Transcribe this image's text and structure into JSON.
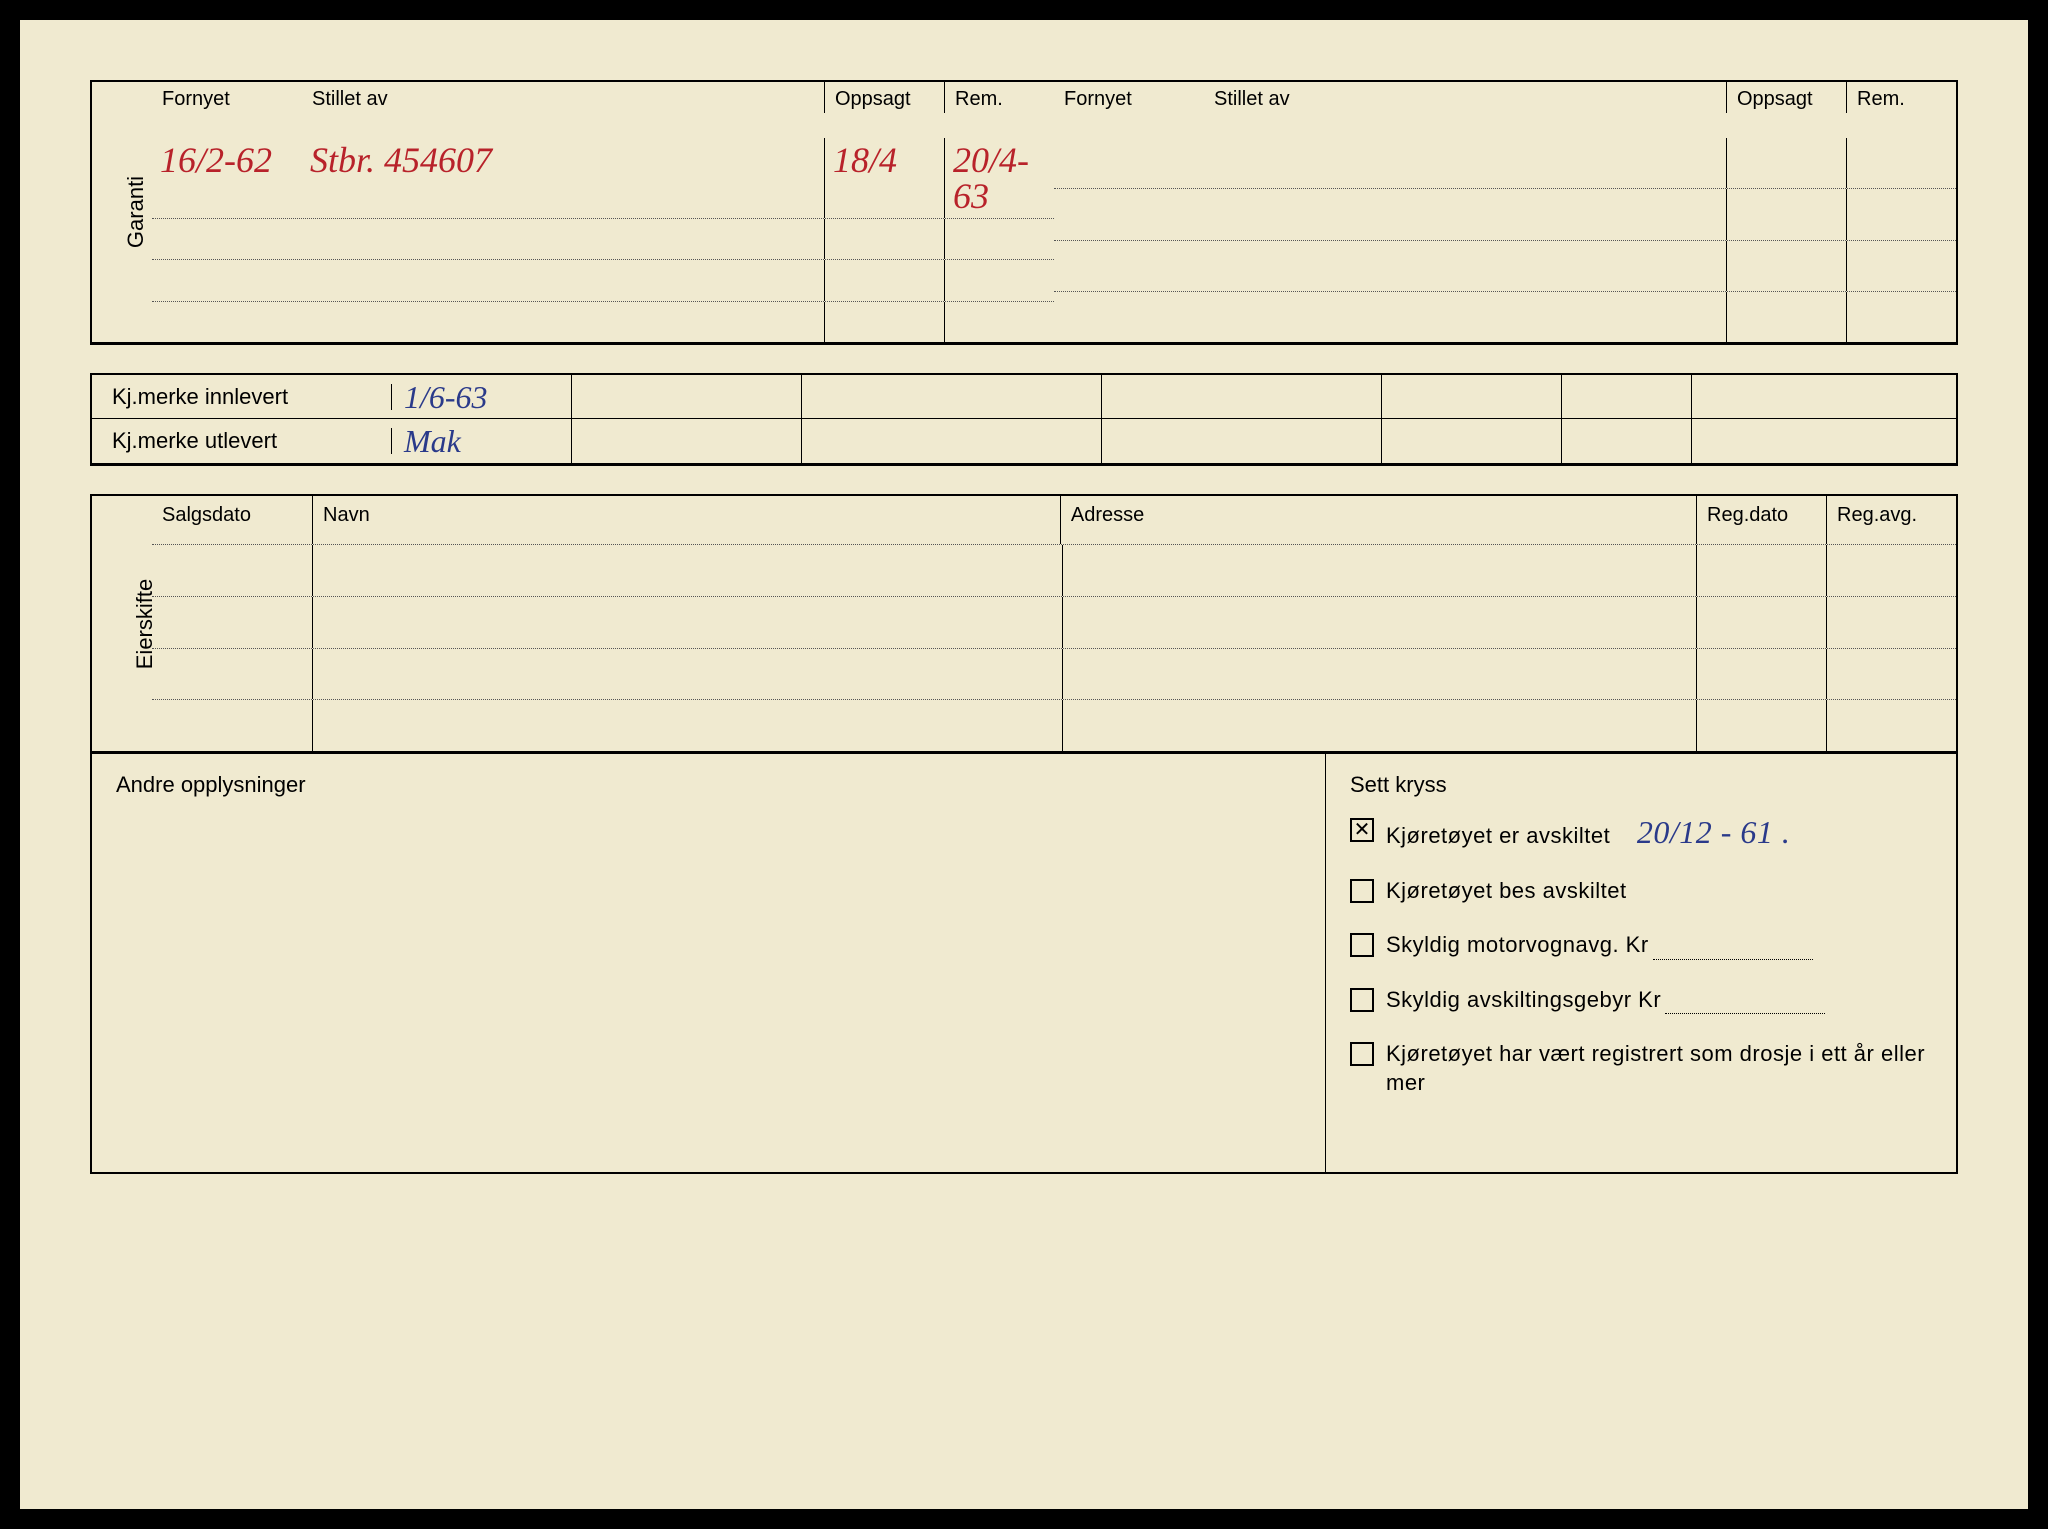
{
  "garanti": {
    "label": "Garanti",
    "headers": {
      "fornyet": "Fornyet",
      "stillet": "Stillet av",
      "oppsagt": "Oppsagt",
      "rem": "Rem."
    },
    "row1": {
      "fornyet": "16/2-62",
      "stillet": "Stbr. 454607",
      "oppsagt": "18/4",
      "rem": "20/4-63"
    }
  },
  "kjmerke": {
    "innlevert_label": "Kj.merke innlevert",
    "utlevert_label": "Kj.merke utlevert",
    "innlevert_val": "1/6-63",
    "utlevert_val": "Mak"
  },
  "eierskifte": {
    "label": "Eierskifte",
    "headers": {
      "salgsdato": "Salgsdato",
      "navn": "Navn",
      "adresse": "Adresse",
      "regdato": "Reg.dato",
      "regavg": "Reg.avg."
    }
  },
  "bottom": {
    "andre_label": "Andre opplysninger",
    "settkryss_label": "Sett kryss",
    "checks": {
      "avskiltet": {
        "label": "Kjøretøyet er avskiltet",
        "checked": true,
        "value": "20/12 - 61 ."
      },
      "bes_avskiltet": {
        "label": "Kjøretøyet bes avskiltet",
        "checked": false
      },
      "motorvognavg": {
        "label": "Skyldig motorvognavg. Kr",
        "checked": false
      },
      "avskiltingsgebyr": {
        "label": "Skyldig avskiltingsgebyr Kr",
        "checked": false
      },
      "drosje": {
        "label": "Kjøretøyet har vært registrert som drosje i ett år eller mer",
        "checked": false
      }
    }
  },
  "colors": {
    "paper": "#f0ead0",
    "ink_red": "#b8222a",
    "ink_blue": "#2a3a8a",
    "border": "#000000"
  }
}
